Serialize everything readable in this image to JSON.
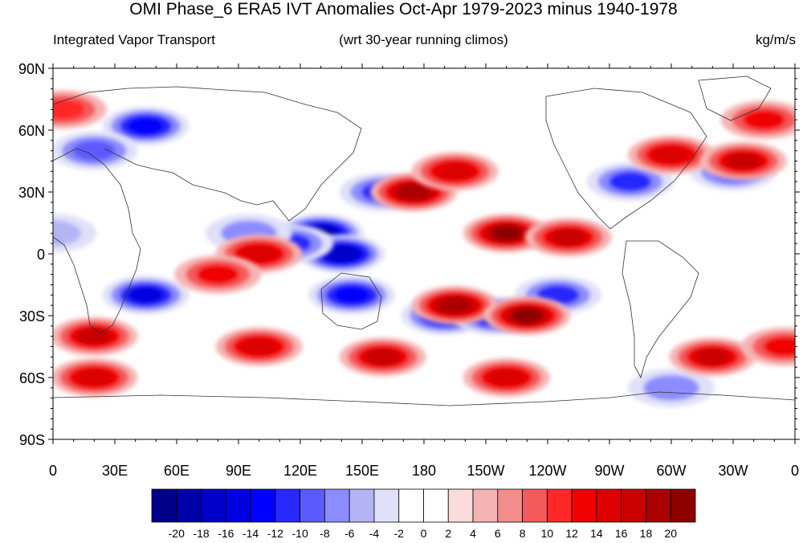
{
  "title": "OMI Phase_6 ERA5 IVT Anomalies Oct-Apr 1979-2023 minus 1940-1978",
  "subtitle_left": "Integrated Vapor Transport",
  "subtitle_center": "(wrt 30-year running climos)",
  "subtitle_right": "kg/m/s",
  "lat_labels": [
    "90N",
    "60N",
    "30N",
    "0",
    "30S",
    "60S",
    "90S"
  ],
  "lon_labels": [
    "0",
    "30E",
    "60E",
    "90E",
    "120E",
    "150E",
    "180",
    "150W",
    "120W",
    "90W",
    "60W",
    "30W",
    "0"
  ],
  "colorbar": {
    "colors": [
      "#00008b",
      "#0000a8",
      "#0000c8",
      "#0000e0",
      "#0000ff",
      "#2828ff",
      "#5a5aff",
      "#8c8cff",
      "#b4b4f5",
      "#e0e0f8",
      "#ffffff",
      "#ffffff",
      "#fadcdc",
      "#f5b4b4",
      "#f58c8c",
      "#f55a5a",
      "#ff2828",
      "#f00000",
      "#dc0000",
      "#c80000",
      "#aa0000",
      "#8c0000"
    ],
    "labels": [
      "-20",
      "-18",
      "-16",
      "-14",
      "-12",
      "-10",
      "-8",
      "-6",
      "-4",
      "-2",
      "0",
      "2",
      "4",
      "6",
      "8",
      "10",
      "12",
      "14",
      "16",
      "18",
      "20"
    ]
  },
  "anomaly_blobs": [
    {
      "lon": 45,
      "lat": 62,
      "value": -14
    },
    {
      "lon": 20,
      "lat": 50,
      "value": -10
    },
    {
      "lon": 130,
      "lat": 10,
      "value": -20
    },
    {
      "lon": 140,
      "lat": 0,
      "value": -18
    },
    {
      "lon": 115,
      "lat": 5,
      "value": -12
    },
    {
      "lon": 45,
      "lat": -20,
      "value": -16
    },
    {
      "lon": 145,
      "lat": -20,
      "value": -14
    },
    {
      "lon": 190,
      "lat": -30,
      "value": -14
    },
    {
      "lon": 215,
      "lat": -30,
      "value": -16
    },
    {
      "lon": 245,
      "lat": -20,
      "value": -12
    },
    {
      "lon": 160,
      "lat": 30,
      "value": -12
    },
    {
      "lon": 280,
      "lat": 35,
      "value": -12
    },
    {
      "lon": 330,
      "lat": 40,
      "value": -10
    },
    {
      "lon": 95,
      "lat": 10,
      "value": -8
    },
    {
      "lon": 300,
      "lat": -65,
      "value": -8
    },
    {
      "lon": 0,
      "lat": 10,
      "value": -6
    },
    {
      "lon": 175,
      "lat": 30,
      "value": 18
    },
    {
      "lon": 195,
      "lat": 40,
      "value": 14
    },
    {
      "lon": 220,
      "lat": 10,
      "value": 20
    },
    {
      "lon": 250,
      "lat": 8,
      "value": 16
    },
    {
      "lon": 300,
      "lat": 48,
      "value": 14
    },
    {
      "lon": 335,
      "lat": 45,
      "value": 16
    },
    {
      "lon": 100,
      "lat": 0,
      "value": 14
    },
    {
      "lon": 80,
      "lat": -10,
      "value": 12
    },
    {
      "lon": 195,
      "lat": -25,
      "value": 18
    },
    {
      "lon": 230,
      "lat": -30,
      "value": 20
    },
    {
      "lon": 20,
      "lat": -40,
      "value": 16
    },
    {
      "lon": 20,
      "lat": -60,
      "value": 14
    },
    {
      "lon": 100,
      "lat": -45,
      "value": 14
    },
    {
      "lon": 160,
      "lat": -50,
      "value": 16
    },
    {
      "lon": 220,
      "lat": -60,
      "value": 14
    },
    {
      "lon": 320,
      "lat": -50,
      "value": 16
    },
    {
      "lon": 355,
      "lat": -45,
      "value": 12
    },
    {
      "lon": 5,
      "lat": 70,
      "value": 10
    },
    {
      "lon": 345,
      "lat": 65,
      "value": 12
    }
  ]
}
